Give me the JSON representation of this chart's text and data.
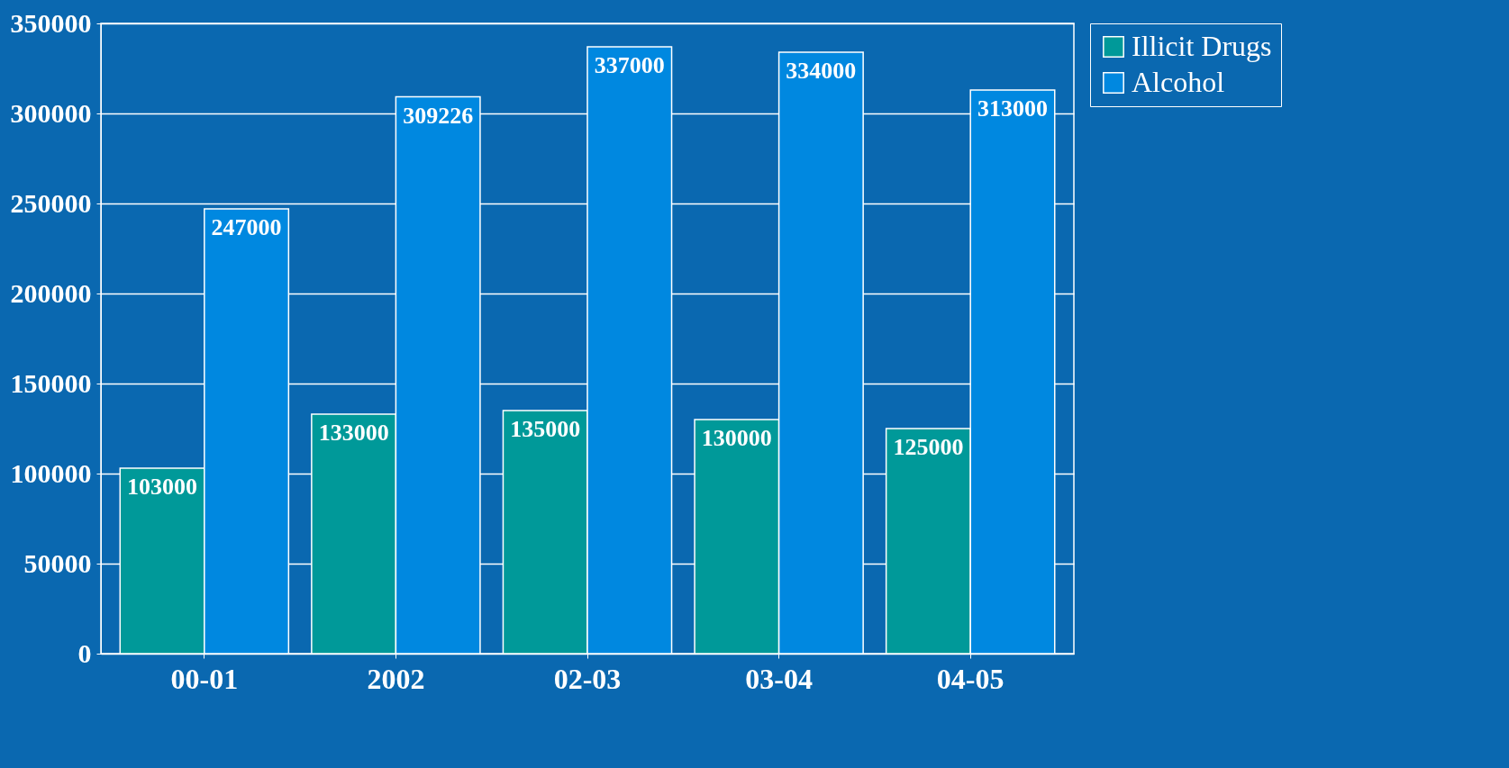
{
  "chart_data": {
    "type": "bar",
    "categories": [
      "00-01",
      "2002",
      "02-03",
      "03-04",
      "04-05"
    ],
    "series": [
      {
        "name": "Illicit Drugs",
        "color": "#009999",
        "values": [
          103000,
          133000,
          135000,
          130000,
          125000
        ]
      },
      {
        "name": "Alcohol",
        "color": "#0088e0",
        "values": [
          247000,
          309226,
          337000,
          334000,
          313000
        ]
      }
    ],
    "ylim": [
      0,
      350000
    ],
    "yticks": [
      0,
      50000,
      100000,
      150000,
      200000,
      250000,
      300000,
      350000
    ],
    "grid": "y",
    "legend": "right",
    "data_labels": true
  }
}
